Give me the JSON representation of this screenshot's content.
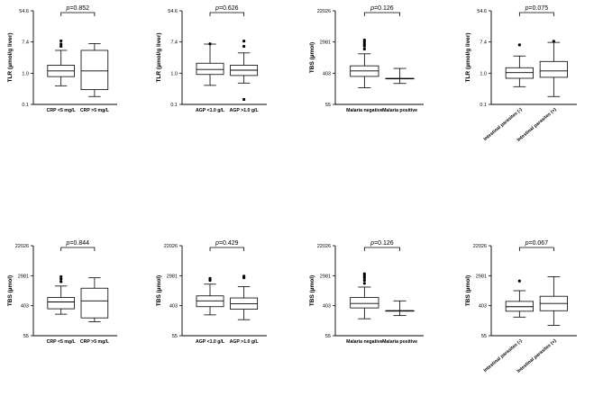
{
  "chart_data": [
    {
      "type": "box",
      "ylabel": "TLR (µmol/g liver)",
      "yscale": "log",
      "yticks": [
        "0.1",
        "1.0",
        "7.4",
        "54.6"
      ],
      "ylim": [
        0.1,
        54.6
      ],
      "pvalue": "p=0.852",
      "categories": [
        "CRP <5 mg/L",
        "CRP >5 mg/L"
      ],
      "boxes": [
        {
          "whisker_low": 0.35,
          "q1": 0.65,
          "median": 0.95,
          "q3": 1.4,
          "whisker_high": 3.8,
          "outliers": [
            5.0,
            5.8,
            7.2
          ]
        },
        {
          "whisker_low": 0.17,
          "q1": 0.27,
          "median": 0.95,
          "q3": 3.8,
          "whisker_high": 6.0,
          "outliers": []
        }
      ]
    },
    {
      "type": "box",
      "ylabel": "TLR (µmol/g liver)",
      "yscale": "log",
      "yticks": [
        "0.1",
        "1.0",
        "7.4",
        "54.6"
      ],
      "ylim": [
        0.1,
        54.6
      ],
      "pvalue": "p=0.626",
      "categories": [
        "AGP <1.0 g/L",
        "AGP >1.0 g/L"
      ],
      "boxes": [
        {
          "whisker_low": 0.36,
          "q1": 0.75,
          "median": 1.05,
          "q3": 1.6,
          "whisker_high": 5.8,
          "outliers": [
            5.9
          ]
        },
        {
          "whisker_low": 0.42,
          "q1": 0.7,
          "median": 1.0,
          "q3": 1.4,
          "whisker_high": 3.2,
          "outliers": [
            5.0,
            7.1,
            0.14
          ]
        }
      ]
    },
    {
      "type": "box",
      "ylabel": "TBS (µmol)",
      "yscale": "log",
      "yticks": [
        "55",
        "403",
        "2981",
        "22026"
      ],
      "ylim": [
        55,
        22026
      ],
      "pvalue": "p=0.126",
      "categories": [
        "Malaria negative",
        "Malaria positive"
      ],
      "boxes": [
        {
          "whisker_low": 160,
          "q1": 330,
          "median": 470,
          "q3": 650,
          "whisker_high": 1400,
          "outliers": [
            1900,
            2300,
            2600,
            3000,
            3400
          ]
        },
        {
          "whisker_low": 210,
          "q1": 290,
          "median": 290,
          "q3": 290,
          "whisker_high": 550,
          "outliers": []
        }
      ]
    },
    {
      "type": "box",
      "ylabel": "TLR (µmol/g liver)",
      "yscale": "log",
      "yticks": [
        "0.1",
        "1.0",
        "7.4",
        "54.6"
      ],
      "ylim": [
        0.1,
        54.6
      ],
      "pvalue": "p=0.075",
      "categories": [
        "Intestinal parasites (-)",
        "Intestinal parasites (+)"
      ],
      "boxes": [
        {
          "whisker_low": 0.33,
          "q1": 0.58,
          "median": 0.85,
          "q3": 1.18,
          "whisker_high": 2.6,
          "outliers": [
            5.5
          ]
        },
        {
          "whisker_low": 0.17,
          "q1": 0.62,
          "median": 0.95,
          "q3": 1.8,
          "whisker_high": 6.5,
          "outliers": [
            7.0
          ]
        }
      ]
    },
    {
      "type": "box",
      "ylabel": "TBS (µmol)",
      "yscale": "log",
      "yticks": [
        "55",
        "403",
        "2981",
        "22026"
      ],
      "ylim": [
        55,
        22026
      ],
      "pvalue": "p=0.844",
      "categories": [
        "CRP <5 mg/L",
        "CRP >5 mg/L"
      ],
      "boxes": [
        {
          "whisker_low": 230,
          "q1": 330,
          "median": 520,
          "q3": 700,
          "whisker_high": 1500,
          "outliers": [
            2000,
            2400,
            2800
          ]
        },
        {
          "whisker_low": 140,
          "q1": 180,
          "median": 560,
          "q3": 1300,
          "whisker_high": 2600,
          "outliers": []
        }
      ]
    },
    {
      "type": "box",
      "ylabel": "TBS (µmol)",
      "yscale": "log",
      "yticks": [
        "55",
        "403",
        "2981",
        "22026"
      ],
      "ylim": [
        55,
        22026
      ],
      "pvalue": "p=0.429",
      "categories": [
        "AGP <1.0 g/L",
        "AGP >1.0 g/L"
      ],
      "boxes": [
        {
          "whisker_low": 220,
          "q1": 380,
          "median": 560,
          "q3": 780,
          "whisker_high": 1700,
          "outliers": [
            2200,
            2500
          ]
        },
        {
          "whisker_low": 160,
          "q1": 320,
          "median": 460,
          "q3": 680,
          "whisker_high": 1450,
          "outliers": [
            2600,
            2900
          ]
        }
      ]
    },
    {
      "type": "box",
      "ylabel": "TBS (µmol)",
      "yscale": "log",
      "yticks": [
        "55",
        "403",
        "2981",
        "22026"
      ],
      "ylim": [
        55,
        22026
      ],
      "pvalue": "p=0.126",
      "categories": [
        "Malaria negative",
        "Malaria positive"
      ],
      "boxes": [
        {
          "whisker_low": 170,
          "q1": 350,
          "median": 470,
          "q3": 700,
          "whisker_high": 1400,
          "outliers": [
            1800,
            2200,
            2600,
            3000,
            3400
          ]
        },
        {
          "whisker_low": 210,
          "q1": 290,
          "median": 290,
          "q3": 290,
          "whisker_high": 560,
          "outliers": []
        }
      ]
    },
    {
      "type": "box",
      "ylabel": "TBS (µmol)",
      "yscale": "log",
      "yticks": [
        "55",
        "403",
        "2981",
        "22026"
      ],
      "ylim": [
        55,
        22026
      ],
      "pvalue": "p=0.067",
      "categories": [
        "Intestinal parasites (-)",
        "Intestinal parasites (+)"
      ],
      "boxes": [
        {
          "whisker_low": 190,
          "q1": 280,
          "median": 380,
          "q3": 540,
          "whisker_high": 1100,
          "outliers": [
            2100
          ]
        },
        {
          "whisker_low": 110,
          "q1": 290,
          "median": 470,
          "q3": 760,
          "whisker_high": 2800,
          "outliers": []
        }
      ]
    }
  ]
}
